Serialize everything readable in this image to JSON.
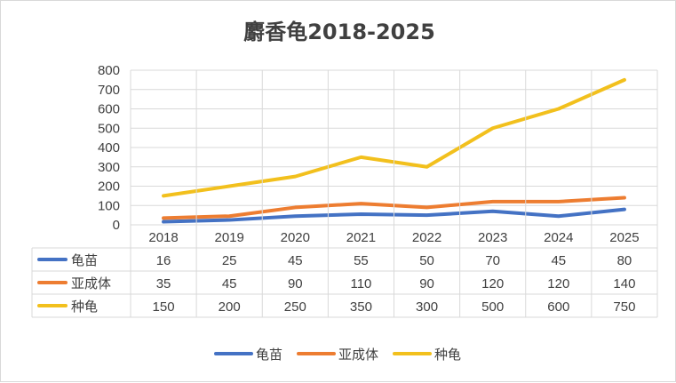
{
  "chart_data": {
    "type": "line",
    "title": "麝香龟2018-2025",
    "categories": [
      "2018",
      "2019",
      "2020",
      "2021",
      "2022",
      "2023",
      "2024",
      "2025"
    ],
    "series": [
      {
        "name": "龟苗",
        "color": "#4472c4",
        "values": [
          16,
          25,
          45,
          55,
          50,
          70,
          45,
          80
        ]
      },
      {
        "name": "亚成体",
        "color": "#ed7d31",
        "values": [
          35,
          45,
          90,
          110,
          90,
          120,
          120,
          140
        ]
      },
      {
        "name": "种龟",
        "color": "#f2c01d",
        "values": [
          150,
          200,
          250,
          350,
          300,
          500,
          600,
          750
        ]
      }
    ],
    "ylim": [
      0,
      800
    ],
    "yticks": [
      0,
      100,
      200,
      300,
      400,
      500,
      600,
      700,
      800
    ],
    "grid": true,
    "legend": "bottom",
    "data_table": true
  }
}
